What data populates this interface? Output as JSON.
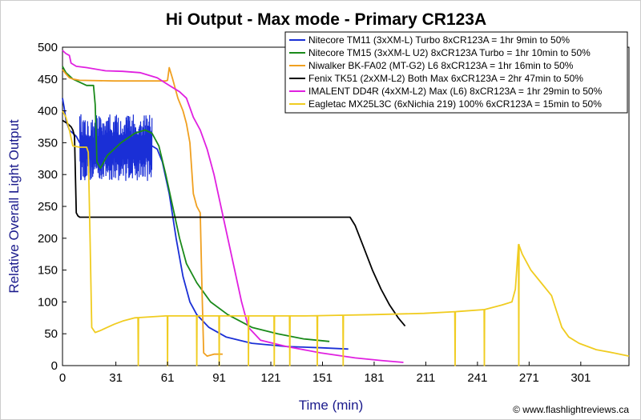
{
  "chart_data": {
    "type": "line",
    "title": "Hi Output - Max mode - Primary CR123A",
    "xlabel": "Time (min)",
    "ylabel": "Relative Overall Light Output",
    "credit": "© www.flashlightreviews.ca",
    "xlim": [
      0,
      329
    ],
    "ylim": [
      0,
      500
    ],
    "x_ticks": [
      0,
      31,
      61,
      91,
      121,
      151,
      181,
      211,
      241,
      271,
      301
    ],
    "y_ticks": [
      0,
      50,
      100,
      150,
      200,
      250,
      300,
      350,
      400,
      450,
      500
    ],
    "grid": false,
    "legend_position": "top-right",
    "series": [
      {
        "name": "Nitecore TM11 (3xXM-L) Turbo 8xCR123A = 1hr 9min to 50%",
        "color": "#1a2fd6",
        "noise": {
          "x_range": [
            10,
            52
          ],
          "low": 290,
          "high": 395
        },
        "points": [
          [
            0,
            420
          ],
          [
            1,
            405
          ],
          [
            2,
            385
          ],
          [
            4,
            370
          ],
          [
            6,
            365
          ],
          [
            8,
            360
          ],
          [
            10,
            350
          ],
          [
            52,
            345
          ],
          [
            55,
            340
          ],
          [
            58,
            320
          ],
          [
            62,
            270
          ],
          [
            66,
            200
          ],
          [
            70,
            140
          ],
          [
            74,
            100
          ],
          [
            78,
            80
          ],
          [
            85,
            60
          ],
          [
            95,
            45
          ],
          [
            110,
            35
          ],
          [
            130,
            30
          ],
          [
            150,
            28
          ],
          [
            166,
            26
          ]
        ]
      },
      {
        "name": "Nitecore TM15 (3xXM-L U2) 8xCR123A Turbo = 1hr 10min to 50%",
        "color": "#1a8a1a",
        "points": [
          [
            0,
            470
          ],
          [
            2,
            460
          ],
          [
            6,
            450
          ],
          [
            14,
            440
          ],
          [
            18,
            440
          ],
          [
            19,
            410
          ],
          [
            20,
            320
          ],
          [
            22,
            310
          ],
          [
            26,
            330
          ],
          [
            34,
            350
          ],
          [
            42,
            365
          ],
          [
            48,
            370
          ],
          [
            52,
            365
          ],
          [
            56,
            345
          ],
          [
            60,
            300
          ],
          [
            64,
            250
          ],
          [
            68,
            200
          ],
          [
            72,
            160
          ],
          [
            78,
            130
          ],
          [
            86,
            100
          ],
          [
            96,
            80
          ],
          [
            110,
            60
          ],
          [
            125,
            50
          ],
          [
            140,
            42
          ],
          [
            155,
            38
          ]
        ]
      },
      {
        "name": "Niwalker BK-FA02 (MT-G2) L6 8xCR123A = 1hr 16min to 50%",
        "color": "#f0a020",
        "points": [
          [
            0,
            465
          ],
          [
            2,
            458
          ],
          [
            4,
            452
          ],
          [
            6,
            450
          ],
          [
            10,
            448
          ],
          [
            30,
            447
          ],
          [
            60,
            447
          ],
          [
            61,
            448
          ],
          [
            62,
            468
          ],
          [
            64,
            450
          ],
          [
            67,
            420
          ],
          [
            70,
            400
          ],
          [
            72,
            380
          ],
          [
            74,
            350
          ],
          [
            76,
            270
          ],
          [
            78,
            250
          ],
          [
            80,
            240
          ],
          [
            81,
            120
          ],
          [
            82,
            20
          ],
          [
            84,
            15
          ],
          [
            88,
            18
          ],
          [
            93,
            18
          ]
        ]
      },
      {
        "name": "Fenix TK51 (2xXM-L2) Both Max 6xCR123A = 2hr 47min to 50%",
        "color": "#000000",
        "points": [
          [
            0,
            385
          ],
          [
            3,
            380
          ],
          [
            5,
            375
          ],
          [
            6,
            370
          ],
          [
            7,
            360
          ],
          [
            8,
            240
          ],
          [
            9,
            235
          ],
          [
            10,
            233
          ],
          [
            15,
            233
          ],
          [
            40,
            233
          ],
          [
            80,
            233
          ],
          [
            120,
            233
          ],
          [
            160,
            233
          ],
          [
            167,
            233
          ],
          [
            170,
            220
          ],
          [
            175,
            185
          ],
          [
            180,
            150
          ],
          [
            185,
            120
          ],
          [
            190,
            95
          ],
          [
            195,
            75
          ],
          [
            199,
            62
          ]
        ]
      },
      {
        "name": "IMALENT DD4R (4xXM-L2) Max (L6) 8xCR123A = 1hr 29min to 50%",
        "color": "#e020e0",
        "points": [
          [
            0,
            495
          ],
          [
            2,
            490
          ],
          [
            4,
            487
          ],
          [
            5,
            475
          ],
          [
            8,
            470
          ],
          [
            14,
            468
          ],
          [
            25,
            463
          ],
          [
            35,
            462
          ],
          [
            45,
            460
          ],
          [
            55,
            452
          ],
          [
            62,
            440
          ],
          [
            68,
            430
          ],
          [
            72,
            420
          ],
          [
            74,
            405
          ],
          [
            76,
            390
          ],
          [
            80,
            370
          ],
          [
            84,
            340
          ],
          [
            88,
            300
          ],
          [
            92,
            250
          ],
          [
            96,
            200
          ],
          [
            100,
            150
          ],
          [
            104,
            100
          ],
          [
            108,
            60
          ],
          [
            115,
            40
          ],
          [
            130,
            30
          ],
          [
            150,
            20
          ],
          [
            170,
            12
          ],
          [
            185,
            8
          ],
          [
            198,
            5
          ]
        ]
      },
      {
        "name": "Eagletac MX25L3C (6xNichia 219) 100% 6xCR123A = 15min to 50%",
        "color": "#f0cc20",
        "dips": [
          {
            "x": 44,
            "y": 0
          },
          {
            "x": 61,
            "y": 0
          },
          {
            "x": 78,
            "y": 0
          },
          {
            "x": 91,
            "y": 0
          },
          {
            "x": 108,
            "y": 0
          },
          {
            "x": 123,
            "y": 0
          },
          {
            "x": 132,
            "y": 0
          },
          {
            "x": 148,
            "y": 0
          },
          {
            "x": 163,
            "y": 0
          },
          {
            "x": 228,
            "y": 0
          },
          {
            "x": 245,
            "y": 0
          },
          {
            "x": 265,
            "y": 0
          }
        ],
        "points": [
          [
            0,
            400
          ],
          [
            2,
            390
          ],
          [
            4,
            370
          ],
          [
            6,
            345
          ],
          [
            10,
            343
          ],
          [
            14,
            343
          ],
          [
            15,
            335
          ],
          [
            16,
            200
          ],
          [
            17,
            60
          ],
          [
            19,
            52
          ],
          [
            22,
            55
          ],
          [
            26,
            60
          ],
          [
            30,
            65
          ],
          [
            35,
            70
          ],
          [
            42,
            75
          ],
          [
            60,
            78
          ],
          [
            100,
            78
          ],
          [
            140,
            78
          ],
          [
            180,
            80
          ],
          [
            210,
            82
          ],
          [
            230,
            85
          ],
          [
            245,
            88
          ],
          [
            255,
            95
          ],
          [
            261,
            100
          ],
          [
            263,
            120
          ],
          [
            265,
            190
          ],
          [
            267,
            175
          ],
          [
            272,
            150
          ],
          [
            278,
            130
          ],
          [
            284,
            110
          ],
          [
            290,
            60
          ],
          [
            294,
            45
          ],
          [
            300,
            35
          ],
          [
            310,
            25
          ],
          [
            320,
            20
          ],
          [
            329,
            15
          ]
        ]
      }
    ]
  }
}
